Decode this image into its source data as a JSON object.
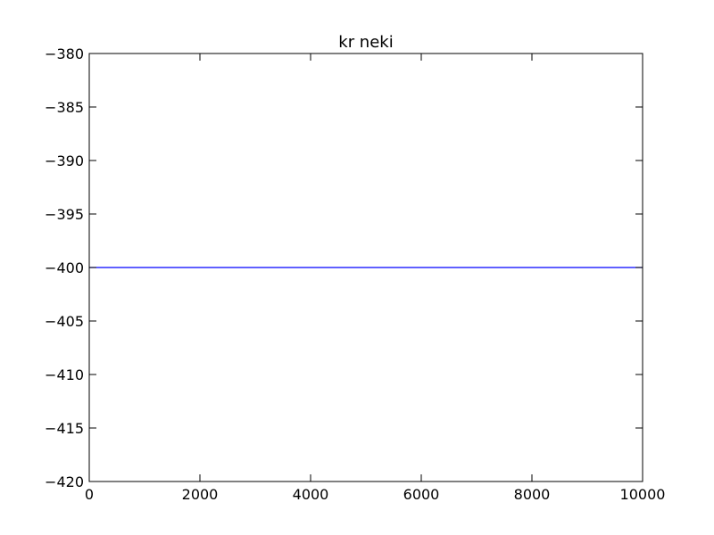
{
  "chart_data": {
    "type": "line",
    "title": "kr neki",
    "xlabel": "",
    "ylabel": "",
    "xlim": [
      0,
      10000
    ],
    "ylim": [
      -420,
      -380
    ],
    "x_ticks": [
      0,
      2000,
      4000,
      6000,
      8000,
      10000
    ],
    "y_ticks": [
      -380,
      -385,
      -390,
      -395,
      -400,
      -405,
      -410,
      -415,
      -420
    ],
    "x_tick_labels": [
      "0",
      "2000",
      "4000",
      "6000",
      "8000",
      "10000"
    ],
    "y_tick_labels": [
      "−380",
      "−385",
      "−390",
      "−395",
      "−400",
      "−405",
      "−410",
      "−415",
      "−420"
    ],
    "grid": false,
    "series": [
      {
        "color": "#0000ff",
        "x": [
          0,
          10000
        ],
        "y": [
          -400,
          -400
        ]
      }
    ]
  }
}
